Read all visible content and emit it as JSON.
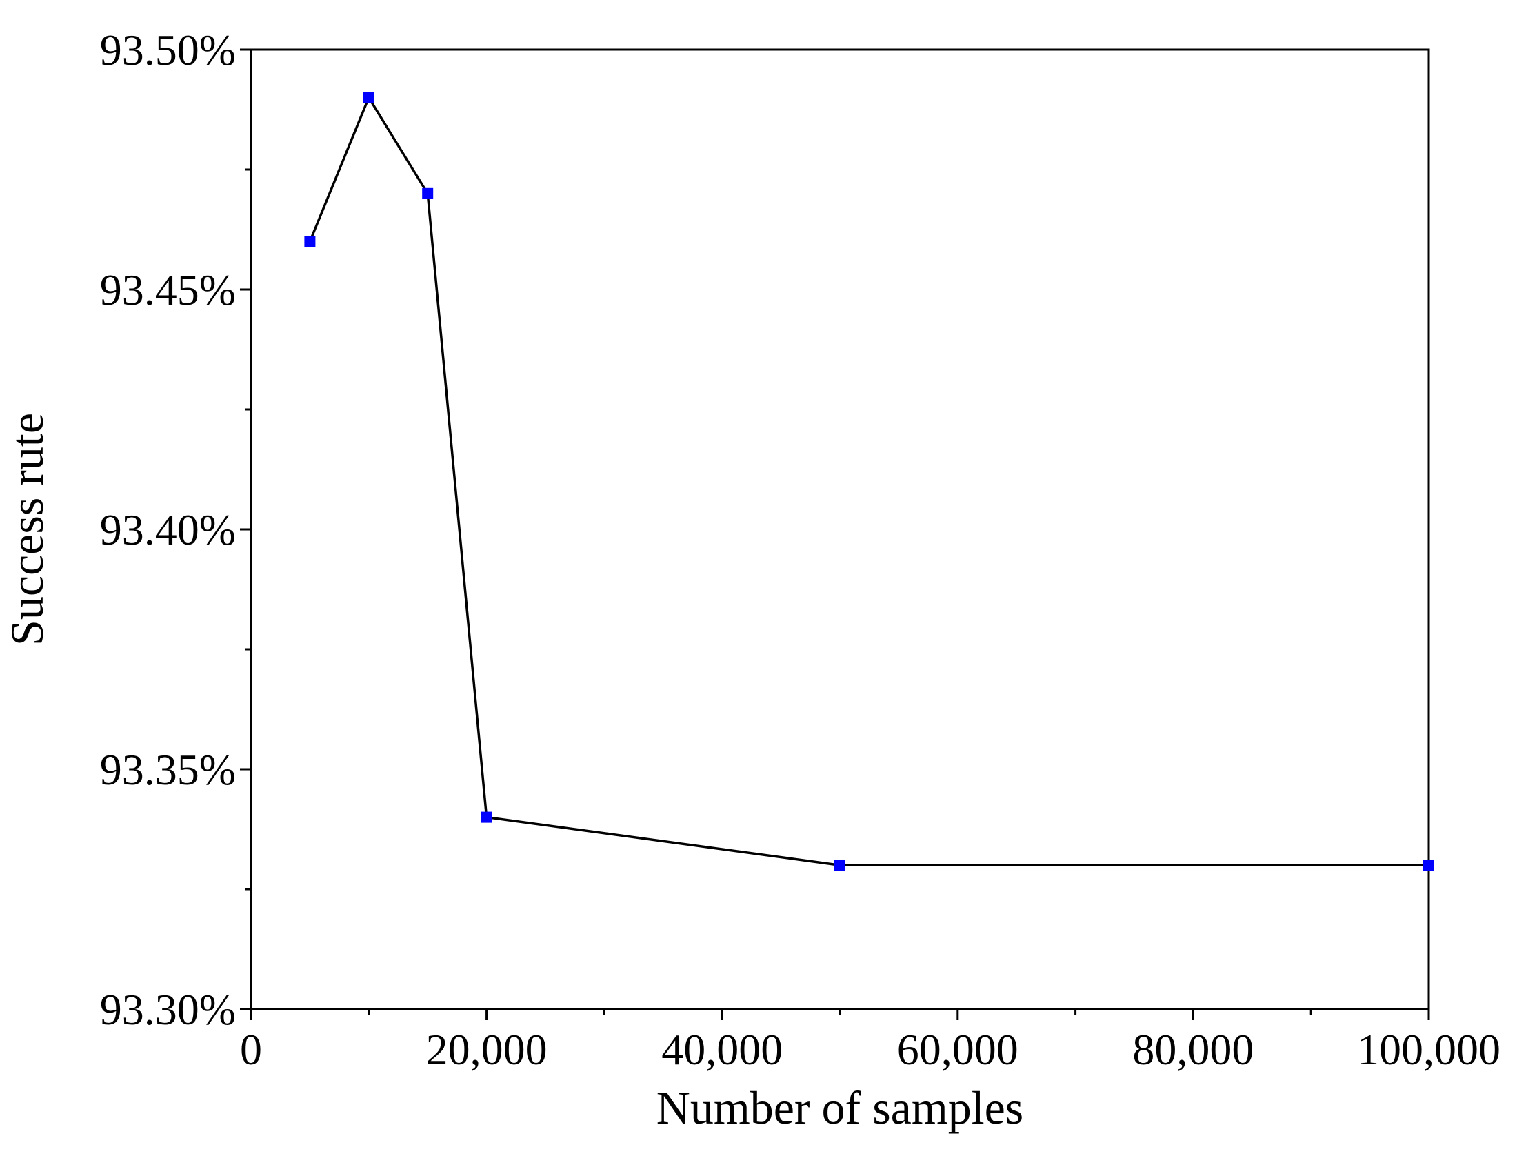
{
  "chart_data": {
    "type": "line",
    "title": "",
    "xlabel": "Number of samples",
    "ylabel": "Success rute",
    "xlim": [
      0,
      100000
    ],
    "ylim": [
      93.3,
      93.5
    ],
    "x_ticks": [
      0,
      20000,
      40000,
      60000,
      80000,
      100000
    ],
    "x_tick_labels": [
      "0",
      "20,000",
      "40,000",
      "60,000",
      "80,000",
      "100,000"
    ],
    "x_minor_ticks": [
      10000,
      30000,
      50000,
      70000,
      90000
    ],
    "y_ticks": [
      93.3,
      93.35,
      93.4,
      93.45,
      93.5
    ],
    "y_tick_labels": [
      "93.30%",
      "93.35%",
      "93.40%",
      "93.45%",
      "93.50%"
    ],
    "y_minor_ticks": [
      93.325,
      93.375,
      93.425,
      93.475
    ],
    "grid": false,
    "legend": "none",
    "series": [
      {
        "x": [
          5000,
          10000,
          15000,
          20000,
          50000,
          100000
        ],
        "y": [
          93.46,
          93.49,
          93.47,
          93.34,
          93.33,
          93.33
        ],
        "line_color": "#000000",
        "marker_color": "#0000ff"
      }
    ]
  }
}
